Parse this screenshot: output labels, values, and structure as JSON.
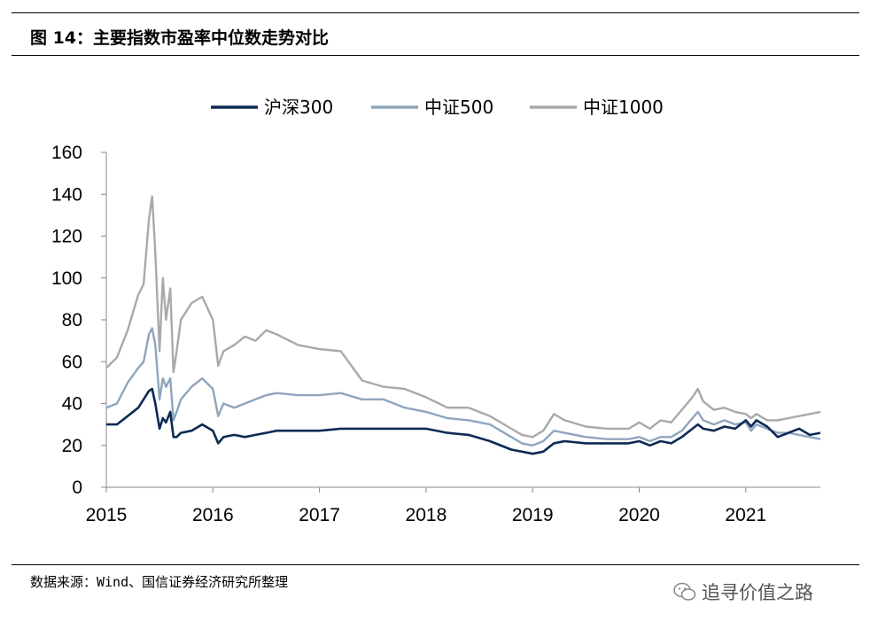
{
  "figure": {
    "title": "图 14：主要指数市盈率中位数走势对比",
    "source": "数据来源：Wind、国信证券经济研究所整理",
    "watermark": "追寻价值之路"
  },
  "chart_data": {
    "type": "line",
    "title": "",
    "xlabel": "",
    "ylabel": "",
    "ylim": [
      0,
      160
    ],
    "yticks": [
      0,
      20,
      40,
      60,
      80,
      100,
      120,
      140,
      160
    ],
    "xlim": [
      2015.0,
      2021.7
    ],
    "xticks": [
      2015,
      2016,
      2017,
      2018,
      2019,
      2020,
      2021
    ],
    "grid": false,
    "legend_position": "top-center",
    "series": [
      {
        "name": "沪深300",
        "color": "#0d2a55",
        "x": [
          2015.0,
          2015.1,
          2015.2,
          2015.3,
          2015.35,
          2015.4,
          2015.43,
          2015.46,
          2015.5,
          2015.53,
          2015.56,
          2015.6,
          2015.63,
          2015.66,
          2015.7,
          2015.8,
          2015.9,
          2016.0,
          2016.05,
          2016.1,
          2016.2,
          2016.3,
          2016.4,
          2016.5,
          2016.6,
          2016.8,
          2017.0,
          2017.2,
          2017.4,
          2017.6,
          2017.8,
          2018.0,
          2018.2,
          2018.4,
          2018.6,
          2018.8,
          2018.9,
          2019.0,
          2019.1,
          2019.2,
          2019.3,
          2019.5,
          2019.7,
          2019.9,
          2020.0,
          2020.1,
          2020.2,
          2020.3,
          2020.4,
          2020.5,
          2020.55,
          2020.6,
          2020.7,
          2020.8,
          2020.9,
          2021.0,
          2021.05,
          2021.1,
          2021.2,
          2021.3,
          2021.4,
          2021.5,
          2021.6,
          2021.7
        ],
        "values": [
          30,
          30,
          34,
          38,
          42,
          46,
          47,
          40,
          28,
          33,
          31,
          36,
          24,
          24,
          26,
          27,
          30,
          27,
          21,
          24,
          25,
          24,
          25,
          26,
          27,
          27,
          27,
          28,
          28,
          28,
          28,
          28,
          26,
          25,
          22,
          18,
          17,
          16,
          17,
          21,
          22,
          21,
          21,
          21,
          22,
          20,
          22,
          21,
          24,
          28,
          30,
          28,
          27,
          29,
          28,
          32,
          29,
          32,
          29,
          24,
          26,
          28,
          25,
          26
        ]
      },
      {
        "name": "中证500",
        "color": "#8fa5bc",
        "x": [
          2015.0,
          2015.1,
          2015.2,
          2015.3,
          2015.35,
          2015.4,
          2015.43,
          2015.46,
          2015.5,
          2015.53,
          2015.56,
          2015.6,
          2015.63,
          2015.66,
          2015.7,
          2015.8,
          2015.9,
          2016.0,
          2016.05,
          2016.1,
          2016.2,
          2016.3,
          2016.4,
          2016.5,
          2016.6,
          2016.8,
          2017.0,
          2017.2,
          2017.4,
          2017.6,
          2017.8,
          2018.0,
          2018.2,
          2018.4,
          2018.6,
          2018.8,
          2018.9,
          2019.0,
          2019.1,
          2019.2,
          2019.3,
          2019.5,
          2019.7,
          2019.9,
          2020.0,
          2020.1,
          2020.2,
          2020.3,
          2020.4,
          2020.5,
          2020.55,
          2020.6,
          2020.7,
          2020.8,
          2020.9,
          2021.0,
          2021.05,
          2021.1,
          2021.2,
          2021.3,
          2021.4,
          2021.5,
          2021.6,
          2021.7
        ],
        "values": [
          38,
          40,
          50,
          57,
          60,
          73,
          76,
          68,
          42,
          52,
          48,
          52,
          32,
          36,
          42,
          48,
          52,
          47,
          34,
          40,
          38,
          40,
          42,
          44,
          45,
          44,
          44,
          45,
          42,
          42,
          38,
          36,
          33,
          32,
          30,
          24,
          21,
          20,
          22,
          27,
          26,
          24,
          23,
          23,
          24,
          22,
          24,
          24,
          27,
          33,
          36,
          32,
          30,
          32,
          30,
          31,
          27,
          30,
          28,
          26,
          26,
          25,
          24,
          23
        ]
      },
      {
        "name": "中证1000",
        "color": "#a9a9a9",
        "x": [
          2015.0,
          2015.1,
          2015.2,
          2015.3,
          2015.35,
          2015.4,
          2015.43,
          2015.46,
          2015.5,
          2015.53,
          2015.56,
          2015.6,
          2015.63,
          2015.66,
          2015.7,
          2015.8,
          2015.9,
          2016.0,
          2016.05,
          2016.1,
          2016.2,
          2016.3,
          2016.4,
          2016.5,
          2016.6,
          2016.8,
          2017.0,
          2017.2,
          2017.4,
          2017.6,
          2017.8,
          2018.0,
          2018.2,
          2018.4,
          2018.6,
          2018.8,
          2018.9,
          2019.0,
          2019.1,
          2019.2,
          2019.3,
          2019.5,
          2019.7,
          2019.9,
          2020.0,
          2020.1,
          2020.2,
          2020.3,
          2020.4,
          2020.5,
          2020.55,
          2020.6,
          2020.7,
          2020.8,
          2020.9,
          2021.0,
          2021.05,
          2021.1,
          2021.2,
          2021.3,
          2021.4,
          2021.5,
          2021.6,
          2021.7
        ],
        "values": [
          57,
          62,
          75,
          92,
          97,
          128,
          139,
          112,
          65,
          100,
          80,
          95,
          55,
          65,
          80,
          88,
          91,
          80,
          58,
          65,
          68,
          72,
          70,
          75,
          73,
          68,
          66,
          65,
          51,
          48,
          47,
          43,
          38,
          38,
          34,
          28,
          25,
          24,
          27,
          35,
          32,
          29,
          28,
          28,
          31,
          28,
          32,
          31,
          37,
          43,
          47,
          41,
          37,
          38,
          36,
          35,
          33,
          35,
          32,
          32,
          33,
          34,
          35,
          36
        ]
      }
    ]
  }
}
